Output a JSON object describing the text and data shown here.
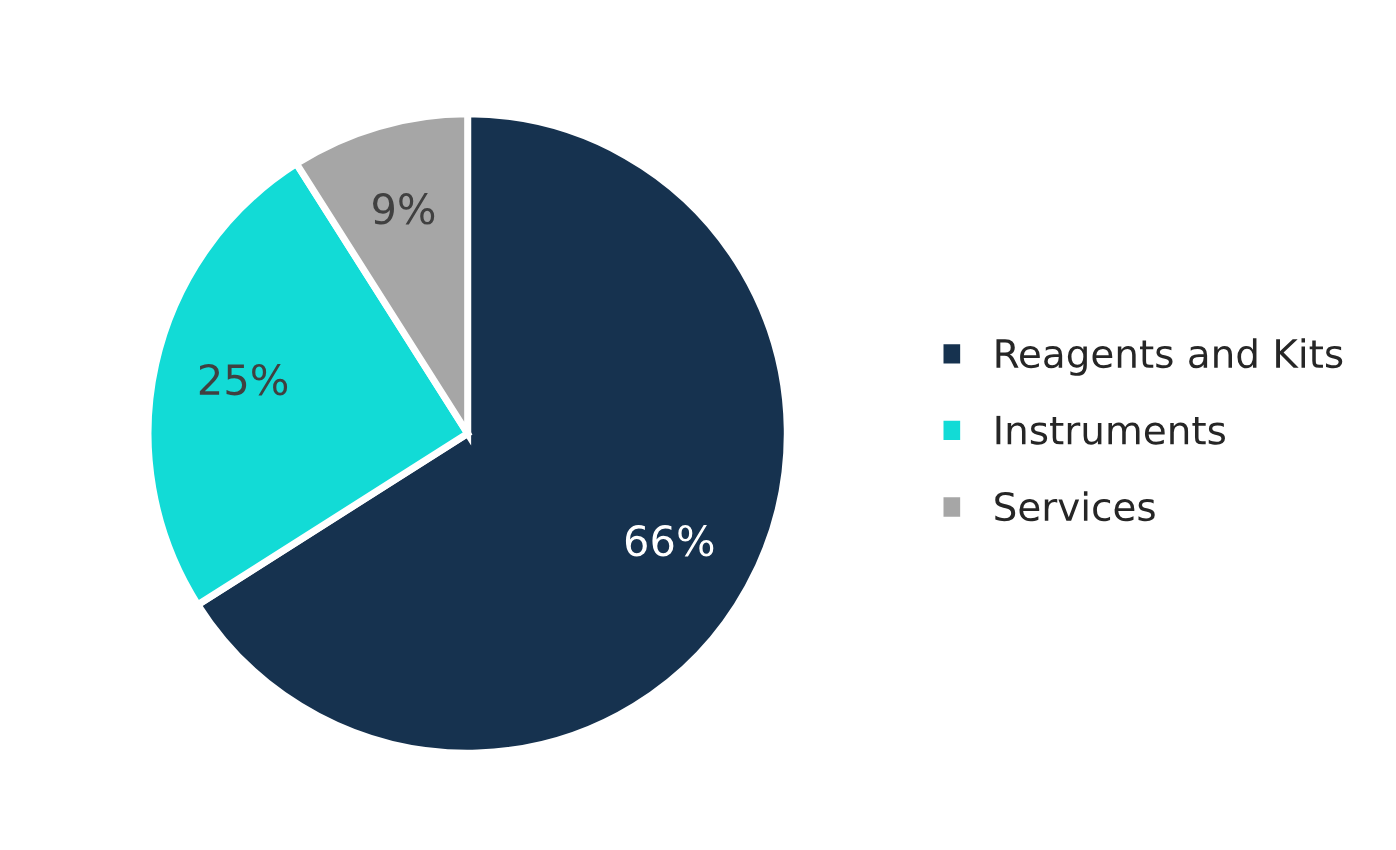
{
  "chart_data": {
    "type": "pie",
    "categories": [
      "Reagents and Kits",
      "Instruments",
      "Services"
    ],
    "values": [
      66,
      25,
      9
    ],
    "colors": [
      "#16324f",
      "#12dbd6",
      "#a6a6a6"
    ],
    "value_labels": [
      "66%",
      "25%",
      "9%"
    ],
    "legend": "right"
  }
}
